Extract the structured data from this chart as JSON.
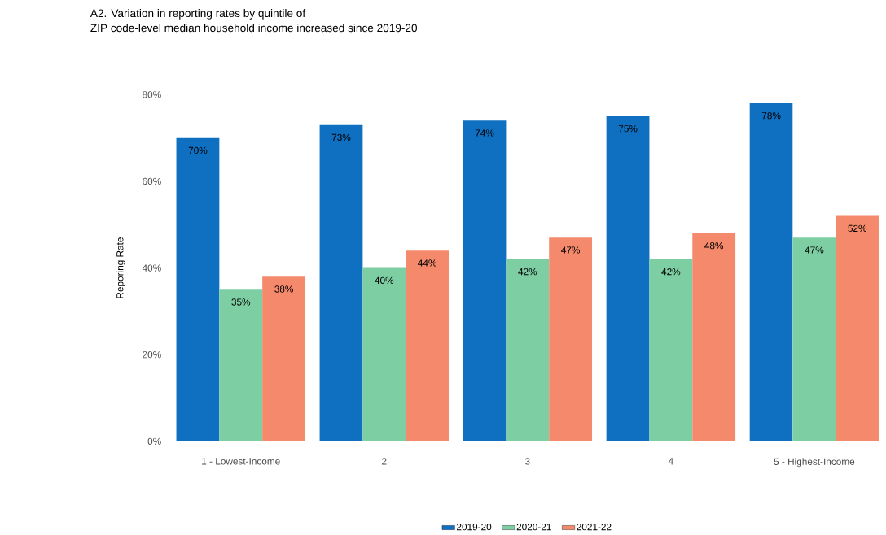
{
  "chart_data": {
    "type": "bar",
    "title": "A2. Variation in reporting rates by quintile of",
    "subtitle": "ZIP code-level median household income increased since 2019-20",
    "ylabel": "Reporing Rate",
    "categories": [
      "1 - Lowest-Income",
      "2",
      "3",
      "4",
      "5 - Highest-Income"
    ],
    "series": [
      {
        "name": "2019-20",
        "color": "#0f6fc0",
        "values": [
          70,
          73,
          74,
          75,
          78
        ],
        "value_labels": [
          "70%",
          "73%",
          "74%",
          "75%",
          "78%"
        ]
      },
      {
        "name": "2020-21",
        "color": "#7dcfa3",
        "values": [
          35,
          40,
          42,
          42,
          47
        ],
        "value_labels": [
          "35%",
          "40%",
          "42%",
          "42%",
          "47%"
        ]
      },
      {
        "name": "2021-22",
        "color": "#f4896b",
        "values": [
          38,
          44,
          47,
          48,
          52
        ],
        "value_labels": [
          "38%",
          "44%",
          "47%",
          "48%",
          "52%"
        ]
      }
    ],
    "ylim": [
      0,
      80
    ],
    "yticks": [
      {
        "value": 0,
        "label": "0%"
      },
      {
        "value": 20,
        "label": "20%"
      },
      {
        "value": 40,
        "label": "40%"
      },
      {
        "value": 60,
        "label": "60%"
      },
      {
        "value": 80,
        "label": "80%"
      }
    ],
    "grid": false,
    "legend": "bottom"
  }
}
